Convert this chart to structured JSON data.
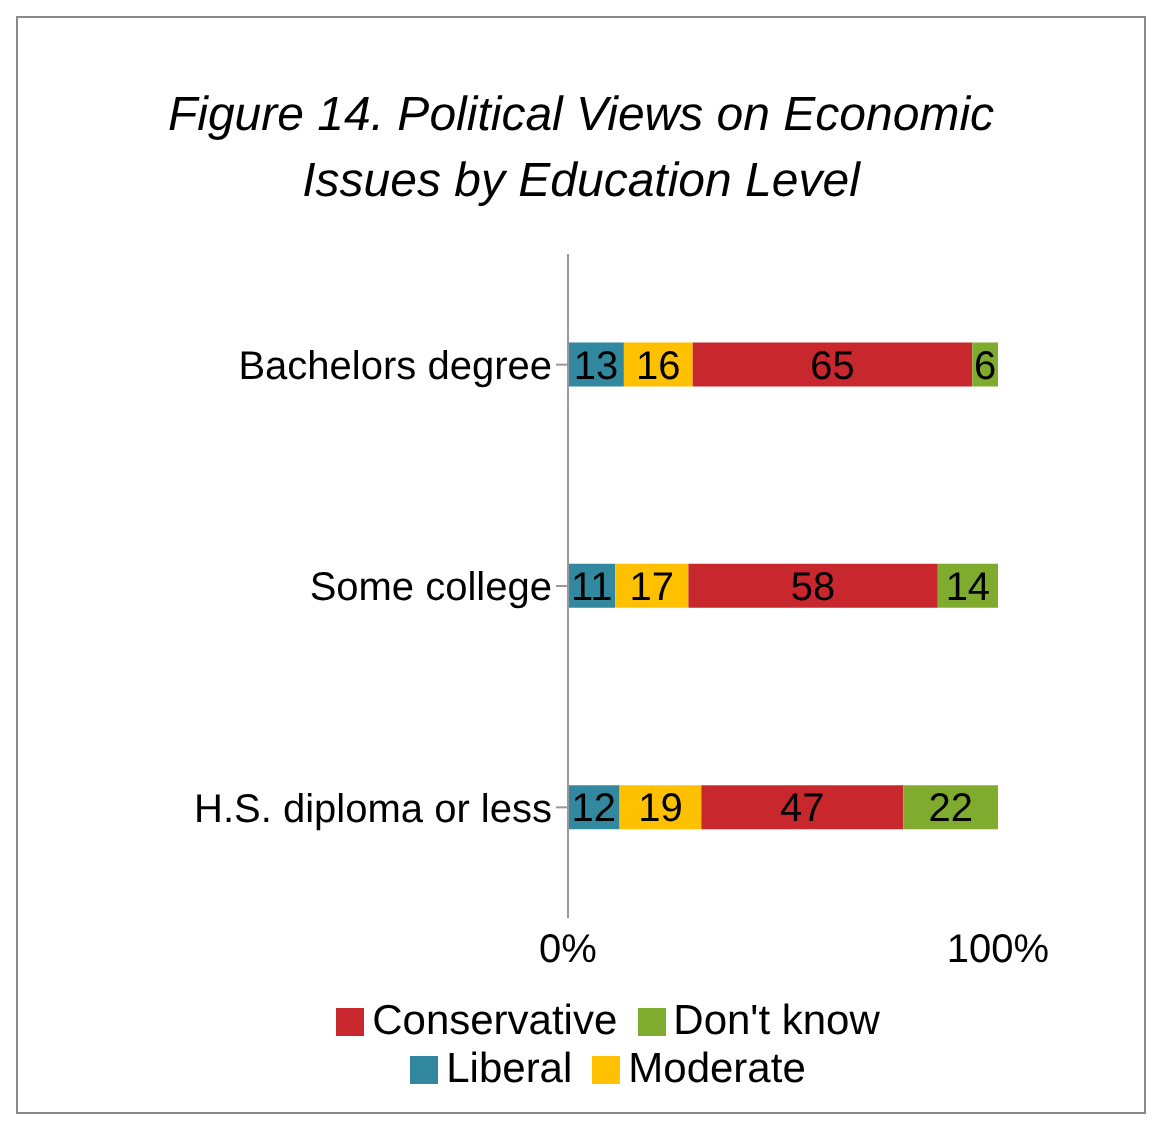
{
  "chart_data": {
    "type": "bar",
    "orientation": "horizontal",
    "stacked": true,
    "title": "Figure 14. Political Views on Economic Issues by Education Level",
    "categories": [
      "Bachelors degree",
      "Some college",
      "H.S. diploma or less"
    ],
    "series": [
      {
        "name": "Liberal",
        "color": "#31889f",
        "values": [
          13,
          11,
          12
        ]
      },
      {
        "name": "Moderate",
        "color": "#ffc000",
        "values": [
          16,
          17,
          19
        ]
      },
      {
        "name": "Conservative",
        "color": "#c8282d",
        "values": [
          65,
          58,
          47
        ]
      },
      {
        "name": "Don't know",
        "color": "#7fac2f",
        "values": [
          6,
          14,
          22
        ]
      }
    ],
    "xlim": [
      0,
      100
    ],
    "xticks": [
      {
        "value": 0,
        "label": "0%"
      },
      {
        "value": 100,
        "label": "100%"
      }
    ],
    "data_labels": true,
    "legend": "bottom",
    "grid": false
  }
}
